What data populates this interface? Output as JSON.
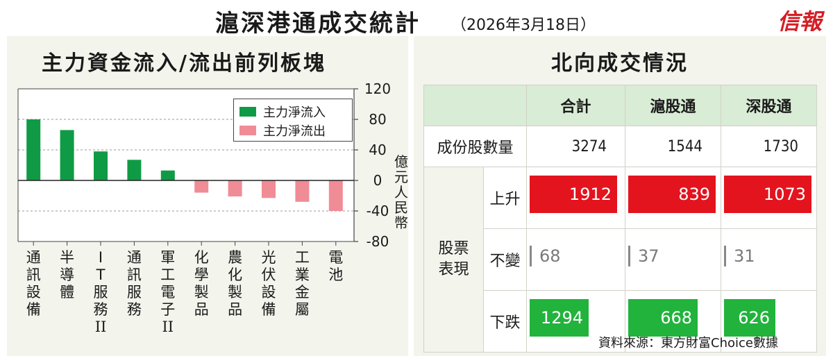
{
  "header": {
    "title": "滬深港通成交統計",
    "date": "（2026年3月18日）",
    "brand": "信報"
  },
  "left_panel": {
    "title": "主力資金流入/流出前列板塊"
  },
  "right_panel": {
    "title": "北向成交情況"
  },
  "chart_data": {
    "type": "bar",
    "title": "主力資金流入/流出前列板塊",
    "categories": [
      "通訊設備",
      "半導體",
      "IT服務II",
      "通訊服務",
      "軍工電子II",
      "化學製品",
      "農化製品",
      "光伏設備",
      "工業金屬",
      "電池"
    ],
    "category_lines": [
      [
        "通",
        "訊",
        "設",
        "備"
      ],
      [
        "半",
        "導",
        "體"
      ],
      [
        "I",
        "T",
        "服",
        "務",
        "II"
      ],
      [
        "通",
        "訊",
        "服",
        "務"
      ],
      [
        "軍",
        "工",
        "電",
        "子",
        "II"
      ],
      [
        "化",
        "學",
        "製",
        "品"
      ],
      [
        "農",
        "化",
        "製",
        "品"
      ],
      [
        "光",
        "伏",
        "設",
        "備"
      ],
      [
        "工",
        "業",
        "金",
        "屬"
      ],
      [
        "電",
        "池"
      ]
    ],
    "values": [
      80,
      66,
      38,
      27,
      13,
      -16,
      -21,
      -23,
      -28,
      -40
    ],
    "ylabel": "億元人民幣",
    "ylim": [
      -80,
      120
    ],
    "yticks": [
      120,
      80,
      40,
      0,
      -40,
      -80
    ],
    "grid": "dashed",
    "legend": {
      "position": "top-right",
      "items": [
        {
          "label": "主力淨流入",
          "color": "#0f9b45"
        },
        {
          "label": "主力淨流出",
          "color": "#f08c96"
        }
      ]
    },
    "colors": {
      "inflow": "#0f9b45",
      "outflow": "#f08c96"
    }
  },
  "table": {
    "columns": [
      "合計",
      "滬股通",
      "深股通"
    ],
    "count_row": {
      "label": "成份股數量",
      "values": [
        "3274",
        "1544",
        "1730"
      ]
    },
    "category_label": "股票表現",
    "rows": [
      {
        "label": "上升",
        "kind": "up",
        "values": [
          1912,
          839,
          1073
        ],
        "color": "#e3141e"
      },
      {
        "label": "不變",
        "kind": "flat",
        "values": [
          68,
          37,
          31
        ],
        "color": "#888888"
      },
      {
        "label": "下跌",
        "kind": "down",
        "values": [
          1294,
          668,
          626
        ],
        "color": "#22b33c"
      }
    ],
    "row_max": [
      1912,
      839,
      1073
    ]
  },
  "source": "資料來源：東方財富Choice數據"
}
